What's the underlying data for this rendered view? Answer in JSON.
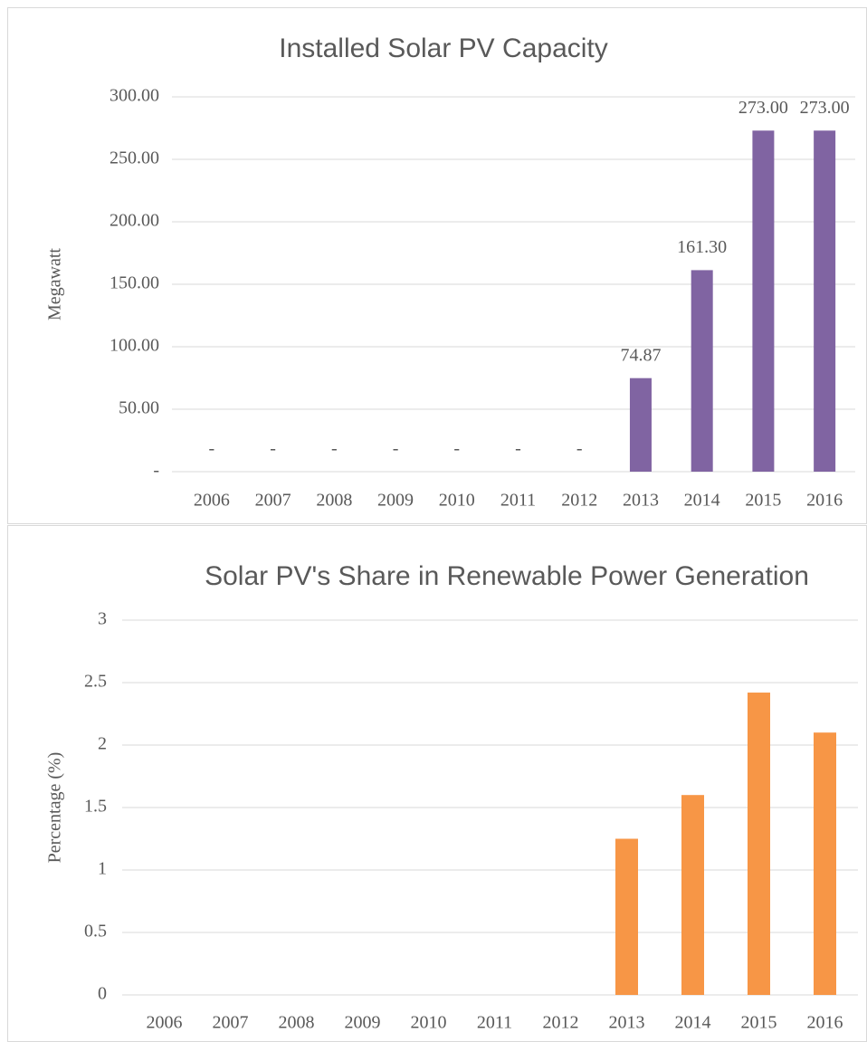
{
  "chart_data": [
    {
      "type": "bar",
      "title": "Installed Solar PV Capacity",
      "y_label": "Megawatt",
      "categories": [
        "2006",
        "2007",
        "2008",
        "2009",
        "2010",
        "2011",
        "2012",
        "2013",
        "2014",
        "2015",
        "2016"
      ],
      "values": [
        0,
        0,
        0,
        0,
        0,
        0,
        0,
        74.87,
        161.3,
        273,
        273
      ],
      "value_labels": [
        "-",
        "-",
        "-",
        "-",
        "-",
        "-",
        "-",
        "74.87",
        "161.30",
        "273.00",
        "273.00"
      ],
      "color": "#8064a2",
      "ylim": [
        0,
        300
      ],
      "yticks": [
        {
          "value": 0,
          "label": "-"
        },
        {
          "value": 50,
          "label": "50.00"
        },
        {
          "value": 100,
          "label": "100.00"
        },
        {
          "value": 150,
          "label": "150.00"
        },
        {
          "value": 200,
          "label": "200.00"
        },
        {
          "value": 250,
          "label": "250.00"
        },
        {
          "value": 300,
          "label": "300.00"
        }
      ],
      "grid": true
    },
    {
      "type": "bar",
      "title": "Solar PV's Share in Renewable Power Generation",
      "y_label": "Percentage (%)",
      "categories": [
        "2006",
        "2007",
        "2008",
        "2009",
        "2010",
        "2011",
        "2012",
        "2013",
        "2014",
        "2015",
        "2016"
      ],
      "values": [
        0,
        0,
        0,
        0,
        0,
        0,
        0,
        1.25,
        1.6,
        2.42,
        2.1
      ],
      "color": "#f79646",
      "ylim": [
        0,
        3
      ],
      "yticks": [
        0,
        0.5,
        1,
        1.5,
        2,
        2.5,
        3
      ],
      "grid": true
    }
  ]
}
